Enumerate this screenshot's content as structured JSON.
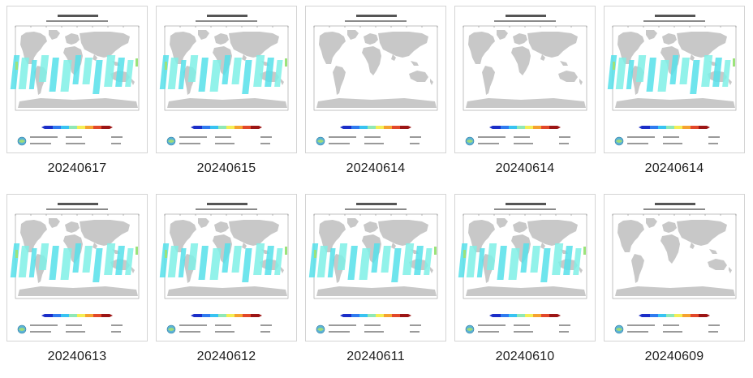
{
  "thumbnails": [
    {
      "label": "20240617",
      "coverage": "dense"
    },
    {
      "label": "20240615",
      "coverage": "dense"
    },
    {
      "label": "20240614",
      "coverage": "none"
    },
    {
      "label": "20240614",
      "coverage": "none"
    },
    {
      "label": "20240614",
      "coverage": "dense"
    },
    {
      "label": "20240613",
      "coverage": "dense"
    },
    {
      "label": "20240612",
      "coverage": "dense"
    },
    {
      "label": "20240611",
      "coverage": "dense"
    },
    {
      "label": "20240610",
      "coverage": "dense"
    },
    {
      "label": "20240609",
      "coverage": "none"
    }
  ],
  "colors": {
    "land": "#c8c8c8",
    "ocean": "#ffffff",
    "swath": "#56e0ea",
    "swath_alt": "#7ff0e6",
    "border": "#d4d4d4",
    "caption_text": "#1f1f1f"
  },
  "icons": {
    "map": "world-map-icon",
    "colorbar": "colorbar-icon",
    "logo": "globe-logo-icon"
  }
}
